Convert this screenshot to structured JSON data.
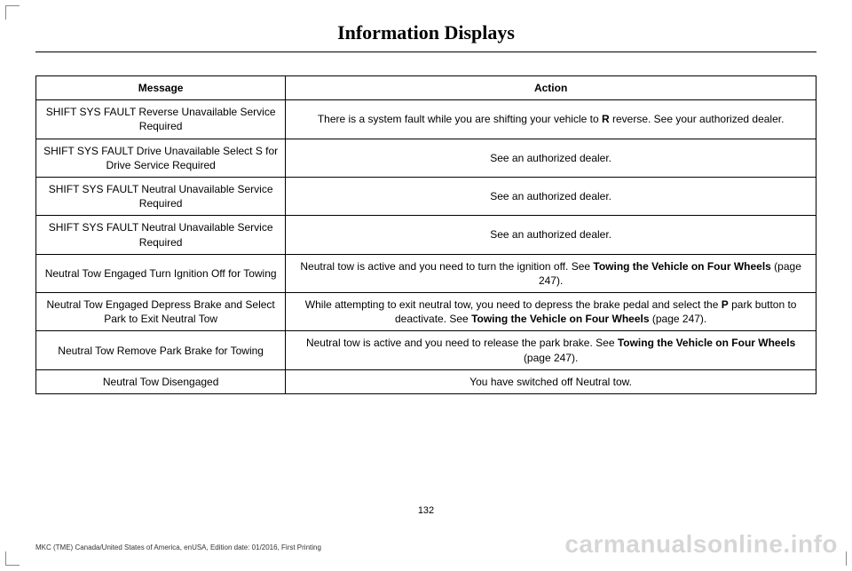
{
  "title": "Information Displays",
  "pageNumber": "132",
  "footer": "MKC (TME) Canada/United States of America, enUSA, Edition date: 01/2016, First Printing",
  "watermark": "carmanualsonline.info",
  "table": {
    "headers": {
      "message": "Message",
      "action": "Action"
    },
    "rows": [
      {
        "message": "SHIFT SYS FAULT Reverse Unavailable Service Required",
        "parts": [
          {
            "text": "There is a system fault while you are shifting your vehicle to ",
            "bold": false
          },
          {
            "text": "R",
            "bold": true
          },
          {
            "text": " reverse. See your authorized dealer.",
            "bold": false
          }
        ]
      },
      {
        "message": "SHIFT SYS FAULT Drive Unavailable Select S for Drive Service Required",
        "parts": [
          {
            "text": "See an authorized dealer.",
            "bold": false
          }
        ]
      },
      {
        "message": "SHIFT SYS FAULT Neutral Unavailable Service Required",
        "parts": [
          {
            "text": "See an authorized dealer.",
            "bold": false
          }
        ]
      },
      {
        "message": "SHIFT SYS FAULT Neutral Unavailable Service Required",
        "parts": [
          {
            "text": "See an authorized dealer.",
            "bold": false
          }
        ]
      },
      {
        "message": "Neutral Tow Engaged Turn Ignition Off for Towing",
        "parts": [
          {
            "text": "Neutral tow is active and you need to turn the ignition off. See ",
            "bold": false
          },
          {
            "text": "Towing the Vehicle on Four Wheels",
            "bold": true
          },
          {
            "text": " (page 247).",
            "bold": false
          }
        ]
      },
      {
        "message": "Neutral Tow Engaged Depress Brake and Select Park to Exit Neutral Tow",
        "parts": [
          {
            "text": "While attempting to exit neutral tow, you need to depress the brake pedal and select the ",
            "bold": false
          },
          {
            "text": "P",
            "bold": true
          },
          {
            "text": " park button to deactivate. See ",
            "bold": false
          },
          {
            "text": "Towing the Vehicle on Four Wheels",
            "bold": true
          },
          {
            "text": " (page 247).",
            "bold": false
          }
        ]
      },
      {
        "message": "Neutral Tow Remove Park Brake for Towing",
        "parts": [
          {
            "text": "Neutral tow is active and you need to release the park brake. See ",
            "bold": false
          },
          {
            "text": "Towing the Vehicle on Four Wheels",
            "bold": true
          },
          {
            "text": " (page 247).",
            "bold": false
          }
        ]
      },
      {
        "message": "Neutral Tow Disengaged",
        "parts": [
          {
            "text": "You have switched off Neutral tow.",
            "bold": false
          }
        ]
      }
    ]
  }
}
